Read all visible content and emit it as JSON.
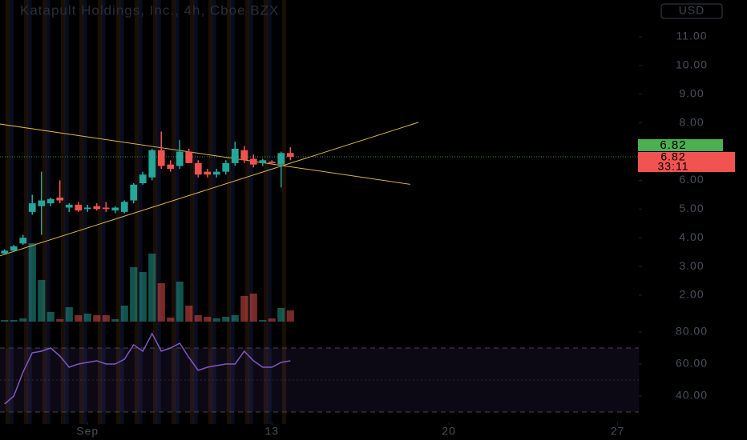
{
  "chart_data": {
    "type": "candlestick",
    "title": "Katapult Holdings, Inc., 4h, Cboe BZX",
    "currency": "USD",
    "x": [
      0,
      1,
      2,
      3,
      4,
      5,
      6,
      7,
      8,
      9,
      10,
      11,
      12,
      13,
      14,
      15,
      16,
      17,
      18,
      19,
      20,
      21,
      22,
      23,
      24,
      25,
      26,
      27,
      28,
      29,
      30,
      31
    ],
    "open": [
      3.45,
      3.55,
      3.8,
      4.9,
      5.1,
      5.2,
      5.4,
      5.05,
      5.15,
      5.0,
      5.1,
      5.05,
      4.95,
      4.9,
      5.3,
      5.9,
      6.1,
      7.05,
      6.55,
      6.5,
      7.0,
      6.6,
      6.3,
      6.2,
      6.3,
      6.6,
      7.05,
      6.75,
      6.6,
      6.65,
      6.55,
      6.95
    ],
    "high": [
      3.6,
      3.75,
      4.1,
      5.5,
      6.3,
      5.4,
      6.0,
      5.2,
      5.25,
      5.15,
      5.2,
      5.25,
      5.1,
      5.3,
      5.9,
      6.3,
      7.1,
      7.7,
      6.7,
      7.4,
      7.1,
      6.7,
      6.4,
      6.4,
      6.7,
      7.35,
      7.2,
      6.9,
      6.75,
      6.7,
      7.0,
      7.15
    ],
    "low": [
      3.4,
      3.5,
      3.75,
      4.8,
      4.1,
      5.1,
      5.2,
      4.9,
      4.9,
      4.9,
      4.95,
      4.9,
      4.85,
      4.85,
      5.2,
      5.85,
      6.0,
      6.4,
      6.3,
      6.4,
      6.6,
      6.1,
      6.1,
      6.1,
      6.2,
      6.5,
      6.6,
      6.45,
      6.5,
      6.55,
      5.75,
      6.7
    ],
    "close": [
      3.55,
      3.7,
      4.0,
      5.2,
      5.3,
      5.35,
      5.3,
      5.15,
      4.95,
      5.05,
      5.0,
      5.0,
      5.05,
      5.25,
      5.85,
      6.2,
      7.05,
      6.5,
      6.4,
      7.0,
      6.6,
      6.2,
      6.2,
      6.3,
      6.6,
      7.1,
      6.7,
      6.55,
      6.7,
      6.6,
      6.95,
      6.82
    ],
    "volume": [
      2,
      2,
      4,
      98,
      52,
      12,
      3,
      18,
      8,
      10,
      8,
      8,
      3,
      20,
      68,
      62,
      85,
      48,
      5,
      50,
      20,
      8,
      6,
      4,
      6,
      8,
      32,
      35,
      2,
      4,
      17,
      14
    ],
    "vlim": [
      0,
      100
    ],
    "rsi": [
      35,
      40,
      55,
      67,
      68,
      70,
      65,
      58,
      60,
      61,
      62,
      60,
      60,
      63,
      72,
      68,
      79,
      68,
      70,
      73,
      64,
      56,
      58,
      59,
      60,
      60,
      68,
      62,
      58,
      58,
      61,
      62
    ],
    "rsi_lim": [
      25,
      85
    ],
    "rsi_levels": [
      70,
      50,
      30
    ],
    "rsi_ticks": [
      {
        "value": 80,
        "label": "80.00"
      },
      {
        "value": 60,
        "label": "60.00"
      },
      {
        "value": 40,
        "label": "40.00"
      }
    ],
    "xlim": [
      -0.5,
      68.8
    ],
    "xticks": [
      {
        "value": 9,
        "label": "Sep"
      },
      {
        "value": 29,
        "label": "13"
      },
      {
        "value": 48.2,
        "label": "20"
      },
      {
        "value": 66.5,
        "label": "27"
      }
    ],
    "ylim": [
      1.08,
      12.28
    ],
    "yticks": [
      {
        "value": 11,
        "label": "11.00"
      },
      {
        "value": 10,
        "label": "10.00"
      },
      {
        "value": 9,
        "label": "9.00"
      },
      {
        "value": 8,
        "label": "8.00"
      },
      {
        "value": 6,
        "label": "6.00"
      },
      {
        "value": 5,
        "label": "5.00"
      },
      {
        "value": 4,
        "label": "4.00"
      },
      {
        "value": 3,
        "label": "3.00"
      },
      {
        "value": 2,
        "label": "2.00"
      }
    ],
    "last_price": 6.82,
    "price_tags": [
      {
        "value": 6.82,
        "color": "#4caf50"
      },
      {
        "value": 6.82,
        "color": "#f05350",
        "countdown": "33:11"
      }
    ],
    "trendlines": [
      {
        "x": [
          -0.5,
          44.0
        ],
        "y": [
          7.96,
          5.86
        ],
        "color": "#d9b44a"
      },
      {
        "x": [
          -0.5,
          44.9
        ],
        "y": [
          3.37,
          8.02
        ],
        "color": "#d9b44a"
      }
    ],
    "up_color": "#26a69a",
    "down_color": "#ef5350",
    "rsi_color": "#7e57c2"
  }
}
